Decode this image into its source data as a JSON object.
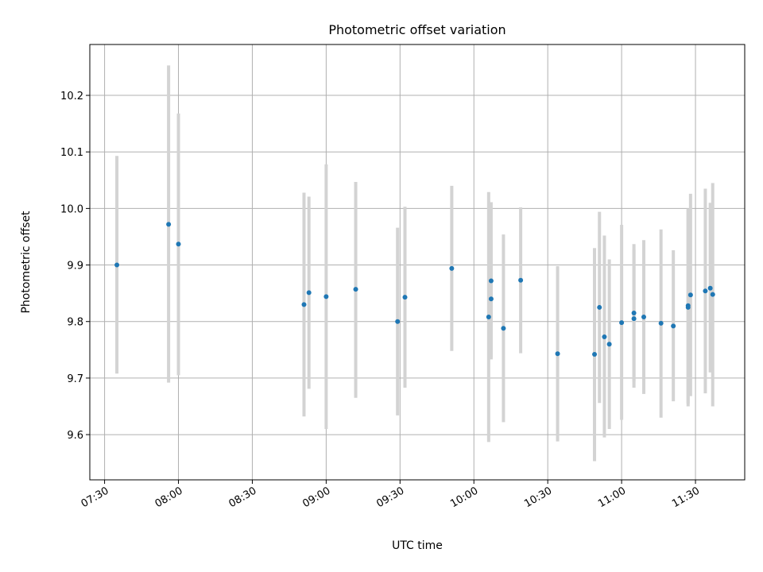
{
  "chart_data": {
    "type": "scatter",
    "title": "Photometric offset variation",
    "xlabel": "UTC time",
    "ylabel": "Photometric offset",
    "grid": true,
    "xlim": [
      "07:24",
      "11:50"
    ],
    "ylim": [
      9.52,
      10.29
    ],
    "x_ticks": [
      "07:30",
      "08:00",
      "08:30",
      "09:00",
      "09:30",
      "10:00",
      "10:30",
      "11:00",
      "11:30"
    ],
    "y_ticks": [
      9.6,
      9.7,
      9.8,
      9.9,
      10.0,
      10.1,
      10.2
    ],
    "point_color": "#1f77b4",
    "errorbar_color": "#d3d3d3",
    "points": [
      {
        "x": "07:35",
        "y": 9.9,
        "ylo": 9.708,
        "yhi": 10.093
      },
      {
        "x": "07:56",
        "y": 9.972,
        "ylo": 9.692,
        "yhi": 10.253
      },
      {
        "x": "08:00",
        "y": 9.937,
        "ylo": 9.705,
        "yhi": 10.168
      },
      {
        "x": "08:51",
        "y": 9.83,
        "ylo": 9.632,
        "yhi": 10.028
      },
      {
        "x": "08:53",
        "y": 9.851,
        "ylo": 9.681,
        "yhi": 10.021
      },
      {
        "x": "09:00",
        "y": 9.844,
        "ylo": 9.61,
        "yhi": 10.078
      },
      {
        "x": "09:12",
        "y": 9.857,
        "ylo": 9.665,
        "yhi": 10.047
      },
      {
        "x": "09:29",
        "y": 9.8,
        "ylo": 9.634,
        "yhi": 9.966
      },
      {
        "x": "09:32",
        "y": 9.843,
        "ylo": 9.683,
        "yhi": 10.003
      },
      {
        "x": "09:51",
        "y": 9.894,
        "ylo": 9.748,
        "yhi": 10.04
      },
      {
        "x": "10:06",
        "y": 9.808,
        "ylo": 9.587,
        "yhi": 10.029
      },
      {
        "x": "10:07",
        "y": 9.84,
        "ylo": 9.736,
        "yhi": 9.944
      },
      {
        "x": "10:07",
        "y": 9.872,
        "ylo": 9.733,
        "yhi": 10.011
      },
      {
        "x": "10:12",
        "y": 9.788,
        "ylo": 9.622,
        "yhi": 9.954
      },
      {
        "x": "10:19",
        "y": 9.873,
        "ylo": 9.744,
        "yhi": 10.002
      },
      {
        "x": "10:34",
        "y": 9.743,
        "ylo": 9.588,
        "yhi": 9.898
      },
      {
        "x": "10:49",
        "y": 9.742,
        "ylo": 9.553,
        "yhi": 9.93
      },
      {
        "x": "10:51",
        "y": 9.825,
        "ylo": 9.656,
        "yhi": 9.994
      },
      {
        "x": "10:53",
        "y": 9.773,
        "ylo": 9.595,
        "yhi": 9.952
      },
      {
        "x": "10:55",
        "y": 9.76,
        "ylo": 9.61,
        "yhi": 9.91
      },
      {
        "x": "11:00",
        "y": 9.798,
        "ylo": 9.626,
        "yhi": 9.971
      },
      {
        "x": "11:05",
        "y": 9.805,
        "ylo": 9.683,
        "yhi": 9.927
      },
      {
        "x": "11:05",
        "y": 9.815,
        "ylo": 9.694,
        "yhi": 9.937
      },
      {
        "x": "11:09",
        "y": 9.808,
        "ylo": 9.672,
        "yhi": 9.944
      },
      {
        "x": "11:16",
        "y": 9.797,
        "ylo": 9.63,
        "yhi": 9.963
      },
      {
        "x": "11:21",
        "y": 9.792,
        "ylo": 9.659,
        "yhi": 9.926
      },
      {
        "x": "11:27",
        "y": 9.828,
        "ylo": 9.655,
        "yhi": 9.998
      },
      {
        "x": "11:27",
        "y": 9.825,
        "ylo": 9.65,
        "yhi": 10.0
      },
      {
        "x": "11:28",
        "y": 9.847,
        "ylo": 9.668,
        "yhi": 10.026
      },
      {
        "x": "11:34",
        "y": 9.854,
        "ylo": 9.673,
        "yhi": 10.035
      },
      {
        "x": "11:36",
        "y": 9.859,
        "ylo": 9.71,
        "yhi": 10.01
      },
      {
        "x": "11:37",
        "y": 9.848,
        "ylo": 9.65,
        "yhi": 10.045
      }
    ]
  }
}
